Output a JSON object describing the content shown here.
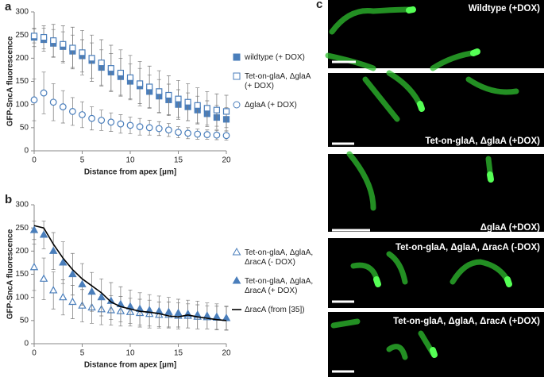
{
  "panel_labels": [
    "a",
    "b",
    "c"
  ],
  "chart_data": [
    {
      "type": "scatter",
      "xlabel": "Distance from apex [µm]",
      "ylabel": "GFP-SncA fluorescence",
      "xlim": [
        0,
        20
      ],
      "xticks": [
        0,
        5,
        10,
        15,
        20
      ],
      "ylim": [
        0,
        300
      ],
      "yticks": [
        0,
        50,
        100,
        150,
        200,
        250,
        300
      ],
      "legend": "right",
      "x": [
        0,
        1,
        2,
        3,
        4,
        5,
        6,
        7,
        8,
        9,
        10,
        11,
        12,
        13,
        14,
        15,
        16,
        17,
        18,
        19,
        20
      ],
      "series": [
        {
          "name": "wildtype (+ DOX)",
          "color": "#4a7ebb",
          "marker": "square",
          "filled": true,
          "values": [
            245,
            240,
            232,
            225,
            215,
            205,
            195,
            180,
            170,
            160,
            150,
            140,
            128,
            118,
            110,
            100,
            95,
            88,
            80,
            72,
            68
          ],
          "errors": [
            20,
            25,
            30,
            32,
            35,
            35,
            38,
            38,
            40,
            40,
            38,
            38,
            36,
            36,
            34,
            32,
            30,
            30,
            28,
            26,
            25
          ]
        },
        {
          "name": "Tet-on-glaA, ΔglaA (+ DOX)",
          "color": "#4a7ebb",
          "marker": "square",
          "filled": false,
          "values": [
            248,
            245,
            238,
            230,
            222,
            212,
            200,
            190,
            178,
            168,
            158,
            145,
            138,
            128,
            120,
            112,
            105,
            98,
            92,
            88,
            85
          ],
          "errors": [
            15,
            25,
            35,
            40,
            45,
            48,
            50,
            50,
            50,
            50,
            48,
            48,
            45,
            45,
            42,
            40,
            40,
            38,
            36,
            35,
            35
          ]
        },
        {
          "name": "ΔglaA (+ DOX)",
          "color": "#4a7ebb",
          "marker": "circle",
          "filled": false,
          "values": [
            110,
            125,
            105,
            95,
            85,
            78,
            70,
            66,
            62,
            58,
            55,
            52,
            50,
            48,
            45,
            40,
            38,
            36,
            35,
            34,
            33
          ],
          "errors": [
            45,
            45,
            40,
            35,
            30,
            28,
            25,
            22,
            20,
            20,
            18,
            18,
            16,
            15,
            14,
            12,
            12,
            11,
            10,
            10,
            10
          ]
        }
      ]
    },
    {
      "type": "scatter",
      "xlabel": "Distance from apex [µm]",
      "ylabel": "GFP-SncA fluorescence",
      "xlim": [
        0,
        20
      ],
      "xticks": [
        0,
        5,
        10,
        15,
        20
      ],
      "ylim": [
        0,
        300
      ],
      "yticks": [
        0,
        50,
        100,
        150,
        200,
        250,
        300
      ],
      "legend": "right",
      "x": [
        0,
        1,
        2,
        3,
        4,
        5,
        6,
        7,
        8,
        9,
        10,
        11,
        12,
        13,
        14,
        15,
        16,
        17,
        18,
        19,
        20
      ],
      "series": [
        {
          "name": "Tet-on-glaA, ΔglaA, ΔracA (- DOX)",
          "color": "#4a7ebb",
          "marker": "triangle",
          "filled": false,
          "values": [
            165,
            140,
            115,
            100,
            90,
            82,
            78,
            74,
            72,
            70,
            68,
            66,
            64,
            62,
            62,
            60,
            60,
            58,
            57,
            56,
            55
          ],
          "errors": [
            50,
            45,
            40,
            38,
            36,
            35,
            34,
            33,
            32,
            32,
            30,
            30,
            30,
            28,
            28,
            28,
            26,
            26,
            25,
            25,
            25
          ]
        },
        {
          "name": "Tet-on-glaA, ΔglaA, ΔracA (+ DOX)",
          "color": "#4a7ebb",
          "marker": "triangle",
          "filled": true,
          "values": [
            245,
            235,
            200,
            175,
            150,
            128,
            112,
            100,
            92,
            85,
            80,
            75,
            72,
            70,
            68,
            66,
            64,
            62,
            60,
            58,
            55
          ],
          "errors": [
            20,
            30,
            40,
            45,
            45,
            45,
            42,
            40,
            40,
            38,
            36,
            35,
            34,
            33,
            32,
            30,
            30,
            30,
            28,
            28,
            26
          ]
        },
        {
          "name": "ΔracA (from [35])",
          "color": "#000000",
          "marker": "none",
          "filled": false,
          "values": [
            255,
            250,
            215,
            185,
            160,
            140,
            125,
            110,
            90,
            80,
            75,
            70,
            68,
            65,
            60,
            58,
            62,
            58,
            55,
            52,
            50
          ]
        }
      ]
    }
  ],
  "images": [
    {
      "label": "Wildtype (+DOX)"
    },
    {
      "label": "Tet-on-glaA, ΔglaA (+DOX)"
    },
    {
      "label": "ΔglaA (+DOX)"
    },
    {
      "label": "Tet-on-glaA, ΔglaA, ΔracA (-DOX)"
    },
    {
      "label": "Tet-on-glaA, ΔglaA, ΔracA (+DOX)"
    }
  ]
}
